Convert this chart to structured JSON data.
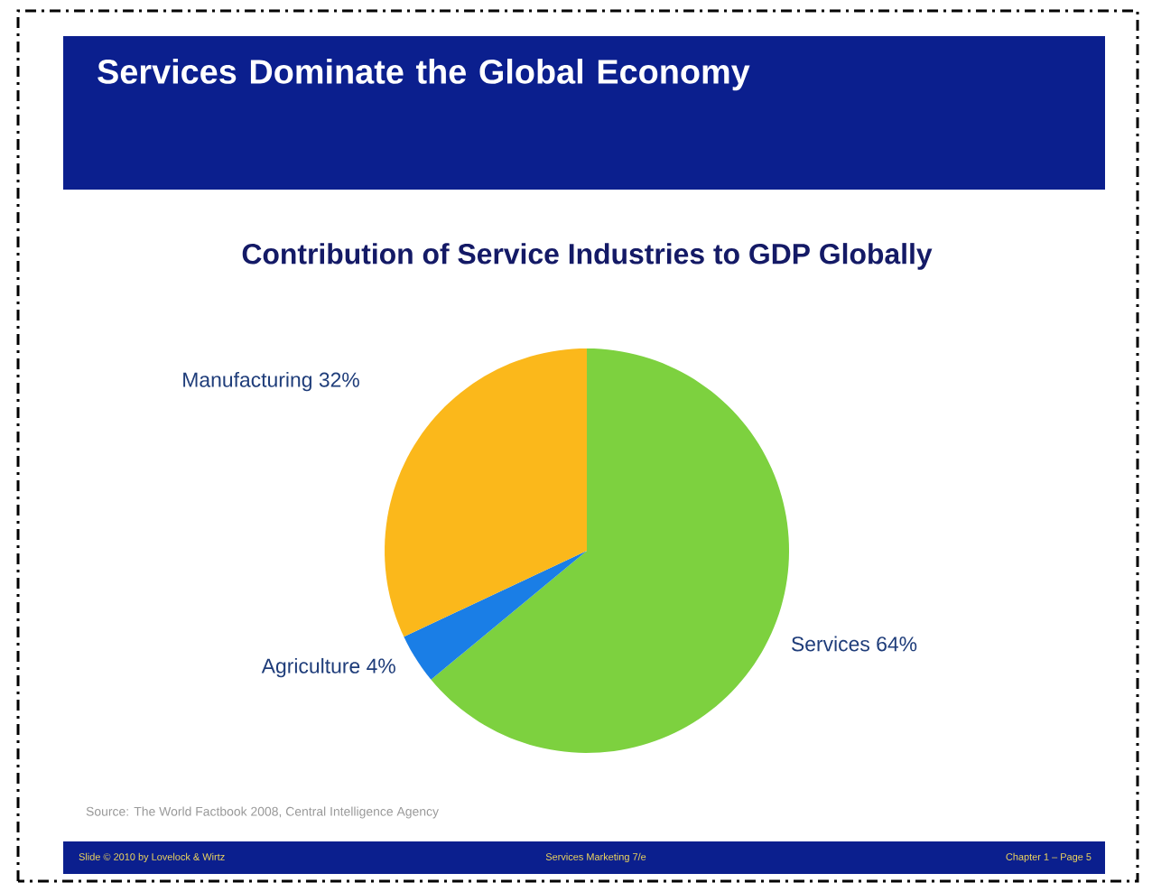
{
  "chart_data": {
    "type": "pie",
    "title": "Services Dominate the Global Economy",
    "subtitle": "Contribution of Service Industries to GDP Globally",
    "categories": [
      "Services",
      "Agriculture",
      "Manufacturing"
    ],
    "values": [
      64,
      4,
      32
    ],
    "colors": [
      "#7dd13f",
      "#1a7ee6",
      "#fbb81b"
    ],
    "value_labels": [
      "64%",
      "4%",
      "32%"
    ],
    "annotations": [
      "Source: The World Factbook 2008, Central Intelligence Agency",
      "Slide © 2010 by Lovelock & Wirtz",
      "Services Marketing 7/e",
      "Chapter 1 – Page 5"
    ]
  }
}
